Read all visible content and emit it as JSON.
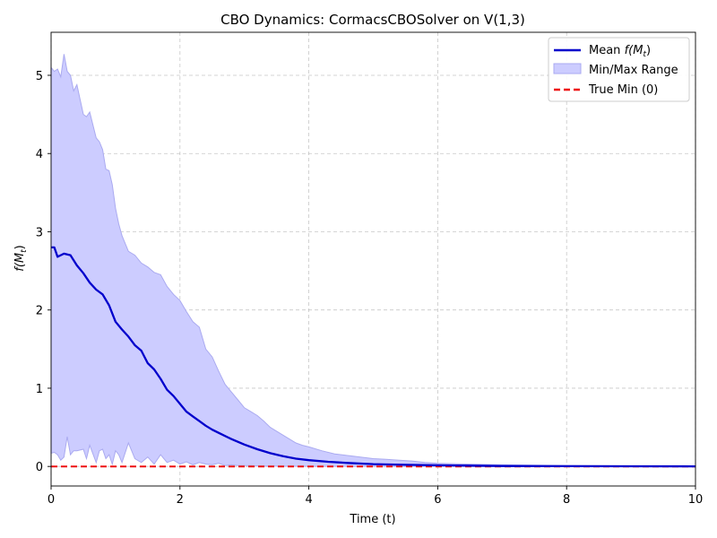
{
  "chart_data": {
    "type": "line",
    "title": "CBO Dynamics: CormacsCBOSolver on V(1,3)",
    "xlabel": "Time (t)",
    "ylabel_base": "f(M",
    "ylabel_sub": "t",
    "ylabel_close": ")",
    "xlim": [
      0,
      10
    ],
    "ylim": [
      -0.25,
      5.55
    ],
    "x_ticks": [
      0,
      2,
      4,
      6,
      8,
      10
    ],
    "y_ticks": [
      0,
      1,
      2,
      3,
      4,
      5
    ],
    "grid": true,
    "legend_position": "top-right",
    "colors": {
      "mean": "#0000cc",
      "range_fill": "#ccccff",
      "range_edge": "#aaaaf0",
      "true_min": "#ee1111"
    },
    "legend": [
      {
        "key": "mean",
        "prefix": "Mean ",
        "math": "f(M",
        "sub": "t",
        "close": ")"
      },
      {
        "key": "range",
        "prefix": "Min/Max Range"
      },
      {
        "key": "true_min",
        "prefix": "True Min (0)"
      }
    ],
    "series": [
      {
        "name": "Mean f(Mt)",
        "kind": "line",
        "x": [
          0,
          0.05,
          0.1,
          0.2,
          0.3,
          0.4,
          0.5,
          0.6,
          0.7,
          0.8,
          0.9,
          1.0,
          1.1,
          1.2,
          1.3,
          1.4,
          1.5,
          1.6,
          1.7,
          1.8,
          1.9,
          2.0,
          2.1,
          2.2,
          2.3,
          2.4,
          2.5,
          2.6,
          2.8,
          3.0,
          3.2,
          3.4,
          3.6,
          3.8,
          4.0,
          4.3,
          4.6,
          5.0,
          5.5,
          6.0,
          6.5,
          7.0,
          8.0,
          9.0,
          10.0
        ],
        "y": [
          2.8,
          2.8,
          2.68,
          2.72,
          2.7,
          2.57,
          2.47,
          2.35,
          2.26,
          2.2,
          2.06,
          1.85,
          1.75,
          1.66,
          1.55,
          1.48,
          1.32,
          1.24,
          1.12,
          0.98,
          0.9,
          0.8,
          0.7,
          0.64,
          0.58,
          0.52,
          0.47,
          0.43,
          0.35,
          0.28,
          0.22,
          0.17,
          0.13,
          0.1,
          0.08,
          0.06,
          0.045,
          0.03,
          0.02,
          0.015,
          0.01,
          0.006,
          0.003,
          0.002,
          0.001
        ]
      },
      {
        "name": "Min/Max Range",
        "kind": "band",
        "x": [
          0,
          0.05,
          0.1,
          0.15,
          0.2,
          0.25,
          0.3,
          0.35,
          0.4,
          0.5,
          0.55,
          0.6,
          0.7,
          0.75,
          0.8,
          0.85,
          0.9,
          0.95,
          1.0,
          1.05,
          1.1,
          1.2,
          1.3,
          1.4,
          1.5,
          1.6,
          1.7,
          1.8,
          1.9,
          2.0,
          2.1,
          2.2,
          2.3,
          2.4,
          2.5,
          2.6,
          2.7,
          2.8,
          2.9,
          3.0,
          3.1,
          3.2,
          3.3,
          3.4,
          3.5,
          3.6,
          3.7,
          3.8,
          3.9,
          4.0,
          4.2,
          4.4,
          4.6,
          4.8,
          5.0,
          5.2,
          5.4,
          5.6,
          5.8,
          6.0,
          6.5,
          7.0,
          8.0,
          9.0,
          10.0
        ],
        "upper": [
          5.1,
          5.05,
          5.08,
          4.98,
          5.27,
          5.05,
          5.0,
          4.8,
          4.88,
          4.5,
          4.47,
          4.53,
          4.2,
          4.15,
          4.05,
          3.8,
          3.78,
          3.6,
          3.3,
          3.1,
          2.95,
          2.75,
          2.7,
          2.6,
          2.55,
          2.48,
          2.45,
          2.3,
          2.2,
          2.12,
          1.98,
          1.85,
          1.78,
          1.5,
          1.4,
          1.22,
          1.05,
          0.95,
          0.85,
          0.75,
          0.7,
          0.65,
          0.58,
          0.5,
          0.45,
          0.4,
          0.35,
          0.3,
          0.27,
          0.25,
          0.2,
          0.16,
          0.14,
          0.12,
          0.1,
          0.09,
          0.08,
          0.07,
          0.05,
          0.04,
          0.03,
          0.02,
          0.01,
          0.008,
          0.005
        ],
        "lower": [
          0.17,
          0.18,
          0.15,
          0.08,
          0.12,
          0.38,
          0.15,
          0.2,
          0.2,
          0.22,
          0.1,
          0.27,
          0.05,
          0.2,
          0.22,
          0.1,
          0.15,
          0.03,
          0.2,
          0.15,
          0.05,
          0.3,
          0.1,
          0.05,
          0.12,
          0.03,
          0.15,
          0.05,
          0.08,
          0.03,
          0.06,
          0.02,
          0.05,
          0.03,
          0.02,
          0.04,
          0.01,
          0.02,
          0.01,
          0.01,
          0.01,
          0.005,
          0.005,
          0.004,
          0.003,
          0.003,
          0.002,
          0.002,
          0.002,
          0.001,
          0.001,
          0.001,
          0.001,
          0.001,
          0.001,
          0.001,
          0.001,
          0.001,
          0.001,
          0.0,
          0.0,
          0.0,
          0.0,
          0.0,
          0.0
        ]
      },
      {
        "name": "True Min (0)",
        "kind": "hline",
        "y": 0
      }
    ]
  }
}
